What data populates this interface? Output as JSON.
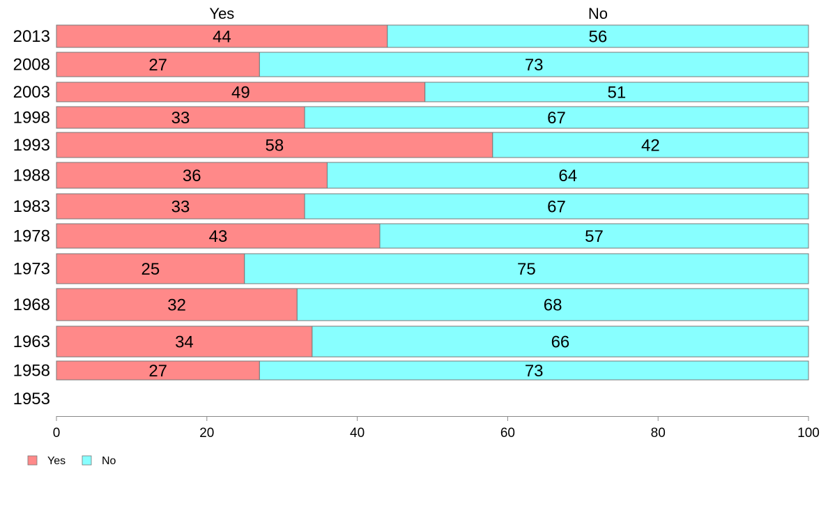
{
  "chart_data": {
    "type": "bar",
    "orientation": "horizontal",
    "stacked": true,
    "categories": [
      "2013",
      "2008",
      "2003",
      "1998",
      "1993",
      "1988",
      "1983",
      "1978",
      "1973",
      "1968",
      "1963",
      "1958",
      "1953"
    ],
    "series": [
      {
        "name": "Yes",
        "color": "#ff8989",
        "values": [
          44,
          27,
          49,
          33,
          58,
          36,
          33,
          43,
          25,
          32,
          34,
          27,
          null
        ]
      },
      {
        "name": "No",
        "color": "#88ffff",
        "values": [
          56,
          73,
          51,
          67,
          42,
          64,
          67,
          57,
          75,
          68,
          66,
          73,
          null
        ]
      }
    ],
    "column_headers": [
      {
        "label": "Yes",
        "at": 22
      },
      {
        "label": "No",
        "at": 72
      }
    ],
    "xlim": [
      0,
      100
    ],
    "xticks": [
      "0",
      "20",
      "40",
      "60",
      "80",
      "100"
    ],
    "grid": false,
    "legend_position": "bottom-left",
    "title": "",
    "xlabel": "",
    "ylabel": ""
  }
}
